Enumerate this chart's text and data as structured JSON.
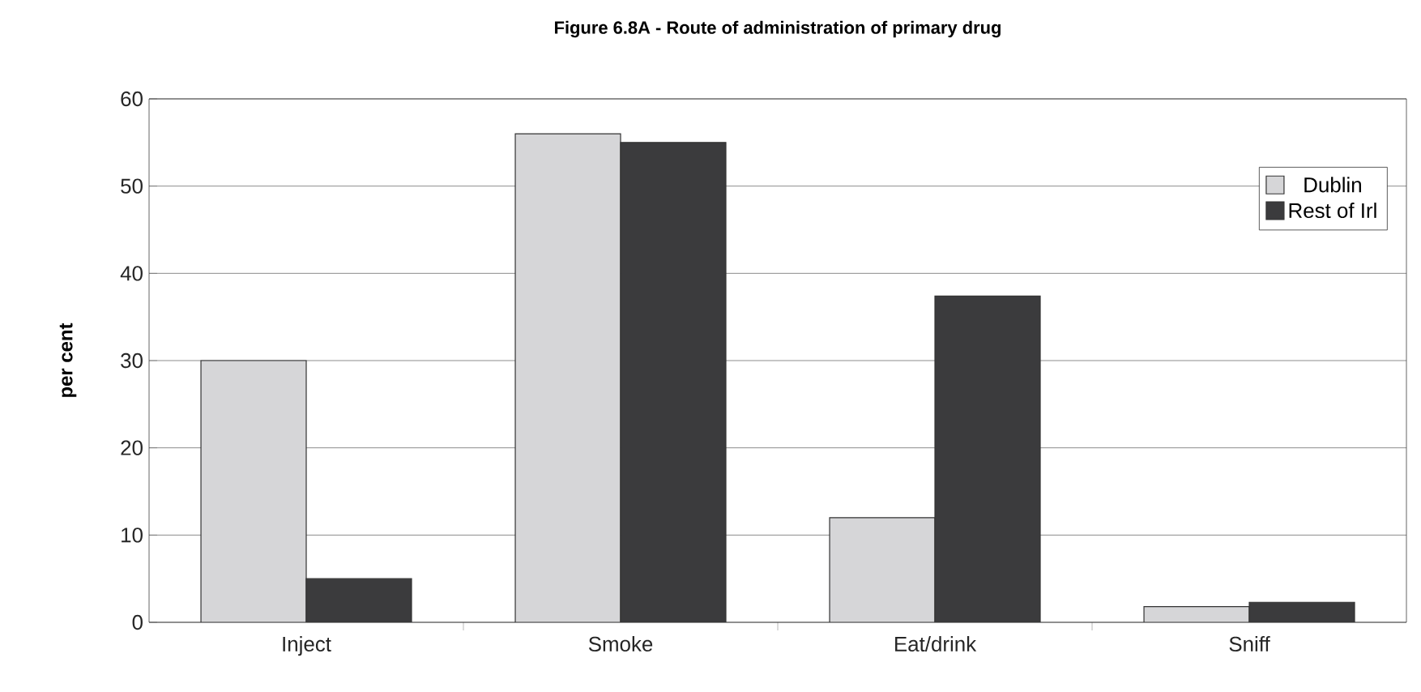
{
  "chart_data": {
    "type": "bar",
    "title": "Figure 6.8A - Route of administration of primary drug",
    "ylabel": "per cent",
    "categories": [
      "Inject",
      "Smoke",
      "Eat/drink",
      "Sniff"
    ],
    "series": [
      {
        "name": "Dublin",
        "color": "#d6d6d8",
        "values": [
          30,
          56,
          12,
          1.8
        ]
      },
      {
        "name": "Rest of Irl",
        "color": "#3b3b3d",
        "values": [
          5,
          55,
          37.4,
          2.3
        ]
      }
    ],
    "ylim": [
      0,
      60
    ],
    "yticks": [
      0,
      10,
      20,
      30,
      40,
      50,
      60
    ],
    "grid": "y",
    "legend": "top right"
  }
}
